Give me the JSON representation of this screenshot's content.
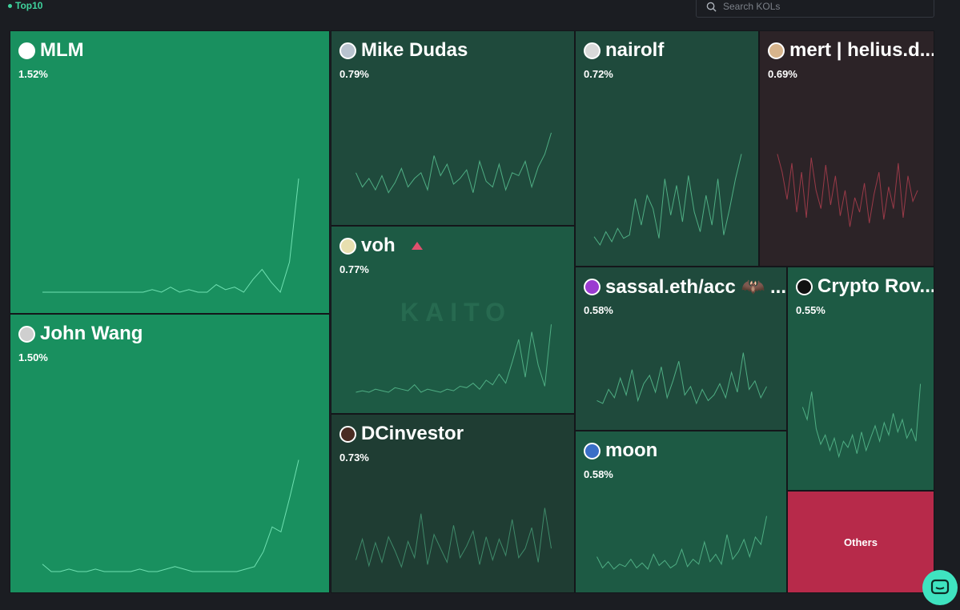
{
  "filter": {
    "label": "Top10"
  },
  "search": {
    "placeholder": "Search KOLs"
  },
  "watermark": "KAITO",
  "tiles": [
    {
      "name": "MLM",
      "pct": "1.52%",
      "trend": [
        0,
        0,
        0,
        0,
        0,
        0,
        0,
        0,
        0,
        0,
        0,
        0,
        1,
        0,
        2,
        0,
        1,
        0,
        0,
        3,
        1,
        2,
        0,
        5,
        9,
        4,
        0,
        12,
        45
      ],
      "color": "#19905f",
      "line": "#6fe0b1",
      "avatar": "#ffffff"
    },
    {
      "name": "John Wang",
      "pct": "1.50%",
      "trend": [
        3,
        0,
        0,
        1,
        0,
        0,
        1,
        0,
        0,
        0,
        0,
        1,
        0,
        0,
        1,
        2,
        1,
        0,
        0,
        0,
        0,
        0,
        0,
        1,
        2,
        8,
        18,
        16,
        30,
        45
      ],
      "color": "#19905f",
      "line": "#6fe0b1",
      "avatar": "#cfcfcf"
    },
    {
      "name": "Mike Dudas",
      "pct": "0.79%",
      "trend": [
        22,
        12,
        18,
        10,
        20,
        8,
        15,
        25,
        12,
        18,
        22,
        10,
        34,
        20,
        28,
        14,
        18,
        24,
        8,
        30,
        16,
        12,
        28,
        10,
        22,
        20,
        30,
        12,
        26,
        35,
        50
      ],
      "color": "#1f4a3c",
      "line": "#4fae84",
      "avatar": "#b9c3cf"
    },
    {
      "name": "voh",
      "pct": "0.77%",
      "trend": [
        0,
        1,
        0,
        2,
        1,
        0,
        3,
        2,
        1,
        5,
        0,
        2,
        1,
        0,
        2,
        1,
        4,
        3,
        6,
        2,
        8,
        5,
        12,
        6,
        20,
        35,
        10,
        40,
        18,
        4,
        45
      ],
      "color": "#1d5a44",
      "line": "#4fae84",
      "avatar": "#e7dfaf"
    },
    {
      "name": "DCinvestor",
      "pct": "0.73%",
      "trend": [
        10,
        28,
        5,
        25,
        8,
        30,
        18,
        4,
        26,
        12,
        50,
        6,
        32,
        20,
        8,
        40,
        12,
        22,
        35,
        6,
        30,
        10,
        28,
        14,
        45,
        12,
        20,
        38,
        8,
        55,
        20
      ],
      "color": "#1f3d33",
      "line": "#3f8a6a",
      "avatar": "#4a2b22"
    },
    {
      "name": "nairolf",
      "pct": "0.72%",
      "trend": [
        5,
        0,
        8,
        2,
        10,
        4,
        6,
        28,
        12,
        30,
        22,
        4,
        40,
        18,
        36,
        14,
        42,
        20,
        8,
        30,
        12,
        40,
        6,
        22,
        40,
        55
      ],
      "color": "#1f4a3c",
      "line": "#4fae84",
      "avatar": "#d9d9d9"
    },
    {
      "name": "mert | helius.d...",
      "pct": "0.69%",
      "trend": [
        50,
        40,
        25,
        45,
        18,
        40,
        15,
        48,
        30,
        20,
        44,
        22,
        38,
        16,
        30,
        10,
        26,
        18,
        34,
        12,
        28,
        40,
        14,
        32,
        20,
        45,
        15,
        38,
        24,
        30
      ],
      "color": "#2c2327",
      "line": "#9a3a48",
      "avatar": "#d7b48c"
    },
    {
      "name": "sassal.eth/acc 🦇 ...",
      "pct": "0.58%",
      "trend": [
        6,
        4,
        14,
        8,
        22,
        10,
        28,
        6,
        18,
        24,
        12,
        30,
        8,
        20,
        34,
        10,
        16,
        4,
        14,
        6,
        10,
        18,
        8,
        26,
        12,
        40,
        14,
        20,
        8,
        16
      ],
      "color": "#1f4a3c",
      "line": "#4fae84",
      "avatar": "#9b3bd1"
    },
    {
      "name": "Crypto Rov...",
      "pct": "0.55%",
      "trend": [
        40,
        32,
        50,
        26,
        16,
        22,
        12,
        20,
        8,
        18,
        14,
        22,
        10,
        24,
        12,
        20,
        28,
        18,
        30,
        22,
        36,
        24,
        32,
        20,
        26,
        18,
        55
      ],
      "color": "#1d5a44",
      "line": "#4fae84",
      "avatar": "#111111"
    },
    {
      "name": "moon",
      "pct": "0.58%",
      "trend": [
        12,
        3,
        8,
        2,
        6,
        4,
        10,
        3,
        7,
        2,
        14,
        5,
        9,
        3,
        6,
        18,
        4,
        10,
        6,
        24,
        8,
        14,
        6,
        30,
        10,
        16,
        26,
        12,
        28,
        22,
        45
      ],
      "color": "#1d5a44",
      "line": "#4fae84",
      "avatar": "#3a6ec7"
    },
    {
      "name": "",
      "label": "Others",
      "pct": "",
      "trend": [],
      "color": "#b72a4a",
      "line": "#ffffff",
      "avatar": ""
    }
  ]
}
